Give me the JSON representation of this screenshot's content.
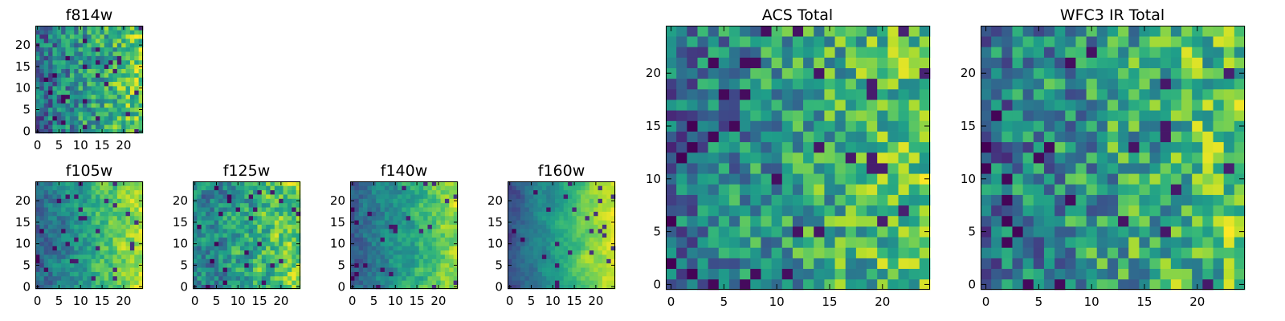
{
  "figure": {
    "colormap": "viridis",
    "background": "#ffffff",
    "grid_size": 25
  },
  "chart_data": [
    {
      "type": "heatmap",
      "title": "f814w",
      "xticks": [
        0,
        5,
        10,
        15,
        20
      ],
      "yticks": [
        0,
        5,
        10,
        15,
        20
      ],
      "xlim": [
        -0.5,
        24.5
      ],
      "ylim": [
        -0.5,
        24.5
      ],
      "grid": false,
      "pattern": {
        "seed": 11,
        "gradient": 0.45,
        "smooth": 0.1
      }
    },
    {
      "type": "heatmap",
      "title": "f105w",
      "xticks": [
        0,
        5,
        10,
        15,
        20
      ],
      "yticks": [
        0,
        5,
        10,
        15,
        20
      ],
      "xlim": [
        -0.5,
        24.5
      ],
      "ylim": [
        -0.5,
        24.5
      ],
      "grid": false,
      "pattern": {
        "seed": 23,
        "gradient": 0.55,
        "smooth": 0.55
      }
    },
    {
      "type": "heatmap",
      "title": "f125w",
      "xticks": [
        0,
        5,
        10,
        15,
        20
      ],
      "yticks": [
        0,
        5,
        10,
        15,
        20
      ],
      "xlim": [
        -0.5,
        24.5
      ],
      "ylim": [
        -0.5,
        24.5
      ],
      "grid": false,
      "pattern": {
        "seed": 37,
        "gradient": 0.35,
        "smooth": 0.55
      }
    },
    {
      "type": "heatmap",
      "title": "f140w",
      "xticks": [
        0,
        5,
        10,
        15,
        20
      ],
      "yticks": [
        0,
        5,
        10,
        15,
        20
      ],
      "xlim": [
        -0.5,
        24.5
      ],
      "ylim": [
        -0.5,
        24.5
      ],
      "grid": false,
      "pattern": {
        "seed": 41,
        "gradient": 0.55,
        "smooth": 0.6
      }
    },
    {
      "type": "heatmap",
      "title": "f160w",
      "xticks": [
        0,
        5,
        10,
        15,
        20
      ],
      "yticks": [
        0,
        5,
        10,
        15,
        20
      ],
      "xlim": [
        -0.5,
        24.5
      ],
      "ylim": [
        -0.5,
        24.5
      ],
      "grid": false,
      "pattern": {
        "seed": 53,
        "gradient": 0.7,
        "smooth": 0.7
      }
    },
    {
      "type": "heatmap",
      "title": "ACS Total",
      "xticks": [
        0,
        5,
        10,
        15,
        20
      ],
      "yticks": [
        0,
        5,
        10,
        15,
        20
      ],
      "xlim": [
        -0.5,
        24.5
      ],
      "ylim": [
        -0.5,
        24.5
      ],
      "grid": false,
      "pattern": {
        "seed": 67,
        "gradient": 0.4,
        "smooth": 0.15
      }
    },
    {
      "type": "heatmap",
      "title": "WFC3 IR Total",
      "xticks": [
        0,
        5,
        10,
        15,
        20
      ],
      "yticks": [
        0,
        5,
        10,
        15,
        20
      ],
      "xlim": [
        -0.5,
        24.5
      ],
      "ylim": [
        -0.5,
        24.5
      ],
      "grid": false,
      "pattern": {
        "seed": 79,
        "gradient": 0.35,
        "smooth": 0.15
      }
    }
  ]
}
